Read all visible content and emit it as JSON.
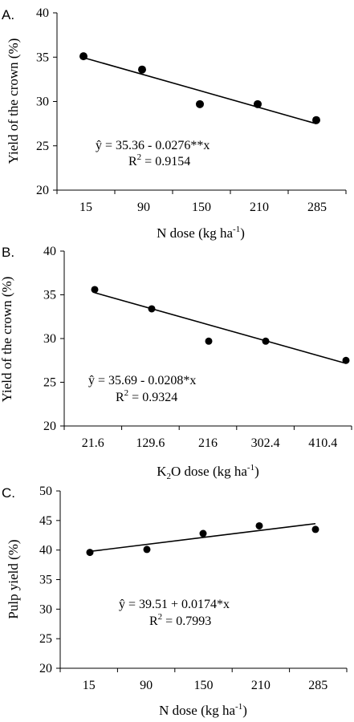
{
  "chart_data": [
    {
      "type": "scatter",
      "panel_label": "A.",
      "categories": [
        "15",
        "90",
        "150",
        "210",
        "285"
      ],
      "values": [
        35.1,
        33.6,
        29.7,
        29.7,
        27.9
      ],
      "trendline": {
        "intercept": 35.36,
        "slope": -0.0276
      },
      "equation": "ŷ = 35.36 - 0.0276**x",
      "r2_label": "R",
      "r2_value": " = 0.9154",
      "xlabel": "N dose (kg ha",
      "xlabel_sup": "-1",
      "xlabel_end": ")",
      "ylabel": "Yield of the crown (%)",
      "yticks": [
        "20",
        "25",
        "30",
        "35",
        "40"
      ],
      "ylim": [
        20,
        40
      ]
    },
    {
      "type": "scatter",
      "panel_label": "B.",
      "categories": [
        "21.6",
        "129.6",
        "216",
        "302.4",
        "410.4"
      ],
      "values": [
        35.6,
        33.4,
        29.7,
        29.7,
        27.5
      ],
      "trendline": {
        "intercept": 35.69,
        "slope": -0.0208
      },
      "equation": "ŷ = 35.69 - 0.0208*x",
      "r2_label": "R",
      "r2_value": " = 0.9324",
      "xlabel_prefix": "K",
      "xlabel_sub": "2",
      "xlabel": "O dose (kg ha",
      "xlabel_sup": "-1",
      "xlabel_end": ")",
      "ylabel": "Yield of the crown (%)",
      "yticks": [
        "20",
        "25",
        "30",
        "35",
        "40"
      ],
      "ylim": [
        20,
        40
      ]
    },
    {
      "type": "scatter",
      "panel_label": "C.",
      "categories": [
        "15",
        "90",
        "150",
        "210",
        "285"
      ],
      "values": [
        39.6,
        40.1,
        42.8,
        44.1,
        43.5
      ],
      "trendline": {
        "intercept": 39.51,
        "slope": 0.0174
      },
      "equation": "ŷ = 39.51 + 0.0174*x",
      "r2_label": "R",
      "r2_value": " = 0.7993",
      "xlabel": "N dose  (kg ha",
      "xlabel_sup": "-1",
      "xlabel_end": ")",
      "ylabel": "Pulp yield (%)",
      "yticks": [
        "20",
        "25",
        "30",
        "35",
        "40",
        "45",
        "50"
      ],
      "ylim": [
        20,
        50
      ]
    }
  ]
}
